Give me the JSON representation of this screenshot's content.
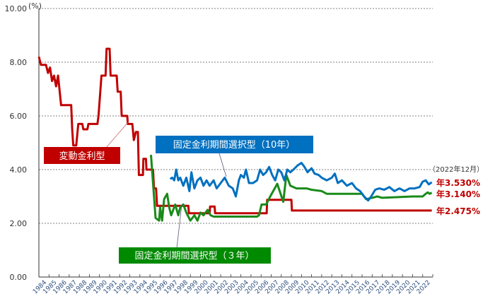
{
  "chart_data": {
    "type": "line",
    "ylabel": "(%)",
    "ylim": [
      0,
      10
    ],
    "yticks": [
      "0.00",
      "2.00",
      "4.00",
      "6.00",
      "8.00",
      "10.00"
    ],
    "xlim": [
      1984,
      2023
    ],
    "xticks": [
      "1984",
      "1985",
      "1986",
      "1987",
      "1988",
      "1989",
      "1990",
      "1991",
      "1992",
      "1993",
      "1994",
      "1995",
      "1996",
      "1997",
      "1998",
      "1999",
      "2000",
      "2001",
      "2002",
      "2003",
      "2004",
      "2005",
      "2006",
      "2007",
      "2008",
      "2009",
      "2010",
      "2011",
      "2012",
      "2013",
      "2014",
      "2015",
      "2016",
      "2017",
      "2018",
      "2019",
      "2020",
      "2021",
      "2022"
    ],
    "grid": "horizontal dashed",
    "colors": {
      "variable": "#c00000",
      "fixed10": "#0070c0",
      "fixed3": "#1a8a1a"
    },
    "series": [
      {
        "name": "変動金利型",
        "color": "#c00000",
        "points": [
          [
            1984.0,
            8.2
          ],
          [
            1984.2,
            7.9
          ],
          [
            1984.7,
            7.9
          ],
          [
            1984.9,
            7.6
          ],
          [
            1985.1,
            7.8
          ],
          [
            1985.3,
            7.3
          ],
          [
            1985.5,
            7.5
          ],
          [
            1985.7,
            7.1
          ],
          [
            1985.9,
            7.5
          ],
          [
            1986.2,
            6.4
          ],
          [
            1987.2,
            6.4
          ],
          [
            1987.3,
            5.5
          ],
          [
            1987.4,
            4.9
          ],
          [
            1987.7,
            4.9
          ],
          [
            1987.9,
            5.7
          ],
          [
            1988.3,
            5.7
          ],
          [
            1988.4,
            5.5
          ],
          [
            1988.8,
            5.5
          ],
          [
            1988.9,
            5.7
          ],
          [
            1989.8,
            5.7
          ],
          [
            1989.9,
            6.0
          ],
          [
            1990.2,
            7.5
          ],
          [
            1990.6,
            7.5
          ],
          [
            1990.7,
            8.5
          ],
          [
            1991.0,
            8.5
          ],
          [
            1991.1,
            7.5
          ],
          [
            1991.7,
            7.5
          ],
          [
            1991.8,
            6.9
          ],
          [
            1992.1,
            6.9
          ],
          [
            1992.2,
            6.0
          ],
          [
            1992.75,
            6.0
          ],
          [
            1992.8,
            5.7
          ],
          [
            1993.25,
            5.7
          ],
          [
            1993.4,
            5.1
          ],
          [
            1993.6,
            5.4
          ],
          [
            1993.8,
            5.4
          ],
          [
            1993.9,
            3.8
          ],
          [
            1994.3,
            3.8
          ],
          [
            1994.35,
            4.4
          ],
          [
            1994.6,
            4.4
          ],
          [
            1994.65,
            4.0
          ],
          [
            1995.3,
            4.0
          ],
          [
            1995.4,
            3.3
          ],
          [
            1995.6,
            3.3
          ],
          [
            1995.7,
            2.65
          ],
          [
            1998.8,
            2.65
          ],
          [
            1998.85,
            2.375
          ],
          [
            2000.9,
            2.375
          ],
          [
            2000.95,
            2.625
          ],
          [
            2001.4,
            2.625
          ],
          [
            2001.45,
            2.375
          ],
          [
            2006.55,
            2.375
          ],
          [
            2006.6,
            2.875
          ],
          [
            2009.0,
            2.875
          ],
          [
            2009.05,
            2.475
          ],
          [
            2022.9,
            2.475
          ]
        ]
      },
      {
        "name": "固定金利期間選択型（10年）",
        "color": "#0070c0",
        "points": [
          [
            1997.0,
            3.65
          ],
          [
            1997.2,
            3.7
          ],
          [
            1997.4,
            3.6
          ],
          [
            1997.6,
            4.0
          ],
          [
            1997.8,
            3.6
          ],
          [
            1998.0,
            3.7
          ],
          [
            1998.3,
            3.4
          ],
          [
            1998.6,
            3.7
          ],
          [
            1998.9,
            3.2
          ],
          [
            1999.1,
            3.9
          ],
          [
            1999.4,
            3.3
          ],
          [
            1999.7,
            3.6
          ],
          [
            2000.0,
            3.7
          ],
          [
            2000.3,
            3.4
          ],
          [
            2000.6,
            3.6
          ],
          [
            2000.9,
            3.4
          ],
          [
            2001.3,
            3.6
          ],
          [
            2001.6,
            3.3
          ],
          [
            2002.0,
            3.5
          ],
          [
            2002.4,
            3.7
          ],
          [
            2002.8,
            3.4
          ],
          [
            2003.2,
            3.3
          ],
          [
            2003.5,
            3.0
          ],
          [
            2003.8,
            3.6
          ],
          [
            2004.0,
            3.8
          ],
          [
            2004.3,
            3.7
          ],
          [
            2004.5,
            4.0
          ],
          [
            2004.8,
            3.5
          ],
          [
            2005.2,
            3.5
          ],
          [
            2005.6,
            3.6
          ],
          [
            2005.9,
            4.0
          ],
          [
            2006.2,
            3.8
          ],
          [
            2006.5,
            3.9
          ],
          [
            2006.8,
            4.1
          ],
          [
            2007.1,
            3.8
          ],
          [
            2007.4,
            3.6
          ],
          [
            2007.7,
            4.0
          ],
          [
            2008.0,
            3.9
          ],
          [
            2008.3,
            3.6
          ],
          [
            2008.6,
            4.0
          ],
          [
            2008.9,
            3.9
          ],
          [
            2009.2,
            4.0
          ],
          [
            2009.6,
            4.15
          ],
          [
            2010.0,
            4.25
          ],
          [
            2010.3,
            4.1
          ],
          [
            2010.6,
            3.9
          ],
          [
            2011.0,
            4.05
          ],
          [
            2011.3,
            3.85
          ],
          [
            2011.7,
            3.8
          ],
          [
            2012.0,
            3.7
          ],
          [
            2012.5,
            3.6
          ],
          [
            2013.0,
            3.7
          ],
          [
            2013.3,
            3.85
          ],
          [
            2013.6,
            3.5
          ],
          [
            2014.0,
            3.6
          ],
          [
            2014.5,
            3.4
          ],
          [
            2015.0,
            3.5
          ],
          [
            2015.4,
            3.3
          ],
          [
            2015.8,
            3.2
          ],
          [
            2016.2,
            3.0
          ],
          [
            2016.6,
            2.85
          ],
          [
            2016.9,
            3.0
          ],
          [
            2017.3,
            3.25
          ],
          [
            2017.7,
            3.3
          ],
          [
            2018.2,
            3.25
          ],
          [
            2018.7,
            3.35
          ],
          [
            2019.2,
            3.2
          ],
          [
            2019.7,
            3.3
          ],
          [
            2020.2,
            3.2
          ],
          [
            2020.7,
            3.3
          ],
          [
            2021.2,
            3.3
          ],
          [
            2021.7,
            3.35
          ],
          [
            2022.0,
            3.55
          ],
          [
            2022.3,
            3.6
          ],
          [
            2022.6,
            3.45
          ],
          [
            2022.9,
            3.53
          ]
        ]
      },
      {
        "name": "固定金利期間選択型（３年）",
        "color": "#1a8a1a",
        "points": [
          [
            1995.1,
            4.55
          ],
          [
            1995.3,
            3.5
          ],
          [
            1995.55,
            2.2
          ],
          [
            1995.9,
            2.1
          ],
          [
            1996.0,
            2.6
          ],
          [
            1996.2,
            2.1
          ],
          [
            1996.4,
            2.9
          ],
          [
            1996.7,
            3.1
          ],
          [
            1996.9,
            2.6
          ],
          [
            1997.1,
            2.3
          ],
          [
            1997.5,
            2.7
          ],
          [
            1997.8,
            2.3
          ],
          [
            1998.0,
            2.6
          ],
          [
            1998.3,
            2.7
          ],
          [
            1998.6,
            2.4
          ],
          [
            1999.0,
            2.1
          ],
          [
            1999.4,
            2.3
          ],
          [
            1999.7,
            2.1
          ],
          [
            2000.0,
            2.4
          ],
          [
            2000.3,
            2.3
          ],
          [
            2000.7,
            2.5
          ],
          [
            2001.0,
            2.3
          ],
          [
            2001.3,
            2.25
          ],
          [
            2005.6,
            2.25
          ],
          [
            2005.8,
            2.3
          ],
          [
            2006.05,
            2.7
          ],
          [
            2006.5,
            2.7
          ],
          [
            2006.9,
            3.0
          ],
          [
            2007.6,
            3.47
          ],
          [
            2008.2,
            2.8
          ],
          [
            2008.5,
            3.8
          ],
          [
            2008.9,
            3.4
          ],
          [
            2009.5,
            3.3
          ],
          [
            2010.5,
            3.3
          ],
          [
            2011.0,
            3.25
          ],
          [
            2012.0,
            3.2
          ],
          [
            2012.5,
            3.1
          ],
          [
            2016.0,
            3.1
          ],
          [
            2016.4,
            2.9
          ],
          [
            2017.0,
            2.95
          ],
          [
            2017.5,
            3.0
          ],
          [
            2018.0,
            2.95
          ],
          [
            2021.0,
            3.0
          ],
          [
            2022.0,
            3.0
          ],
          [
            2022.3,
            3.1
          ],
          [
            2022.5,
            3.15
          ],
          [
            2022.7,
            3.1
          ],
          [
            2022.9,
            3.14
          ]
        ]
      }
    ],
    "annotations": {
      "date_note": "（2022年12月）",
      "fixed10_final": "年3.530%",
      "fixed3_final": "年3.140%",
      "variable_final": "年2.475%"
    },
    "legend_labels": {
      "variable": "変動金利型",
      "fixed10": "固定金利期間選択型（10年）",
      "fixed3": "固定金利期間選択型（３年）"
    }
  }
}
